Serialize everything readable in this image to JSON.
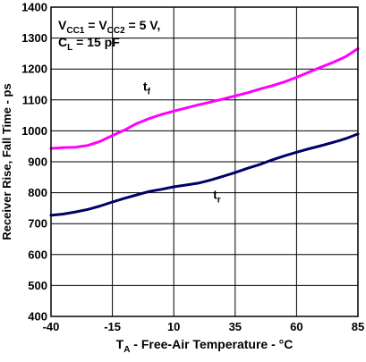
{
  "chart_data": {
    "type": "line",
    "xlabel": {
      "main": "T",
      "sub": "A",
      "rest": " - Free-Air Temperature - °C"
    },
    "ylabel": "Receiver Rise, Fall Time - ps",
    "xlim": [
      -40,
      85
    ],
    "ylim": [
      400,
      1400
    ],
    "x_ticks": [
      -40,
      -15,
      10,
      35,
      60,
      85
    ],
    "y_ticks": [
      400,
      500,
      600,
      700,
      800,
      900,
      1000,
      1100,
      1200,
      1300,
      1400
    ],
    "conditions": {
      "line1": [
        {
          "t": "V",
          "sub": false
        },
        {
          "t": "CC1",
          "sub": true
        },
        {
          "t": " = V",
          "sub": false
        },
        {
          "t": "CC2",
          "sub": true
        },
        {
          "t": " = 5 V,",
          "sub": false
        }
      ],
      "line2": [
        {
          "t": "C",
          "sub": false
        },
        {
          "t": "L",
          "sub": true
        },
        {
          "t": " = 15 pF",
          "sub": false
        }
      ]
    },
    "grid": true,
    "series": [
      {
        "label_main": "t",
        "label_sub": "f",
        "color": "#ff00ff",
        "label_at": {
          "x": -2.5,
          "y": 1130
        },
        "x": [
          -40,
          -35,
          -30,
          -25,
          -20,
          -15,
          -10,
          -5,
          0,
          5,
          10,
          15,
          20,
          25,
          30,
          35,
          40,
          45,
          50,
          55,
          60,
          65,
          70,
          75,
          80,
          85
        ],
        "y": [
          943,
          946,
          947,
          953,
          966,
          985,
          1003,
          1024,
          1040,
          1053,
          1064,
          1074,
          1084,
          1093,
          1103,
          1113,
          1123,
          1135,
          1146,
          1158,
          1173,
          1190,
          1206,
          1222,
          1240,
          1266
        ]
      },
      {
        "label_main": "t",
        "label_sub": "r",
        "color": "#000066",
        "label_at": {
          "x": 26,
          "y": 780
        },
        "x": [
          -40,
          -35,
          -30,
          -25,
          -20,
          -15,
          -10,
          -5,
          0,
          5,
          10,
          15,
          20,
          25,
          30,
          35,
          40,
          45,
          50,
          55,
          60,
          65,
          70,
          75,
          80,
          85
        ],
        "y": [
          727,
          731,
          738,
          746,
          757,
          770,
          782,
          793,
          804,
          811,
          819,
          825,
          831,
          841,
          853,
          865,
          879,
          891,
          906,
          919,
          931,
          942,
          952,
          963,
          975,
          990
        ]
      }
    ]
  }
}
